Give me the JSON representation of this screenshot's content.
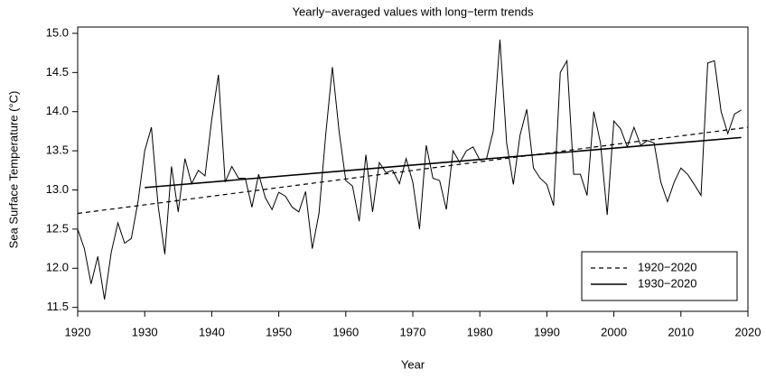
{
  "chart_data": {
    "type": "line",
    "title": "Yearly−averaged values with long−term trends",
    "xlabel": "Year",
    "ylabel": "Sea Surface Temperature (°C)",
    "xlim": [
      1920,
      2020
    ],
    "ylim": [
      11.45,
      15.08
    ],
    "xticks": [
      1920,
      1930,
      1940,
      1950,
      1960,
      1970,
      1980,
      1990,
      2000,
      2010,
      2020
    ],
    "yticks": [
      11.5,
      {
        "value": 12,
        "label": "12.0"
      },
      12.5,
      {
        "value": 13,
        "label": "13.0"
      },
      13.5,
      {
        "value": 14,
        "label": "14.0"
      },
      14.5,
      {
        "value": 15,
        "label": "15.0"
      }
    ],
    "legend": "bottom-right",
    "series": [
      {
        "color": "#000000",
        "dashed": false,
        "width": 1,
        "x": [
          1920,
          1921,
          1922,
          1923,
          1924,
          1925,
          1926,
          1927,
          1928,
          1929,
          1930,
          1931,
          1932,
          1933,
          1934,
          1935,
          1936,
          1937,
          1938,
          1939,
          1940,
          1941,
          1942,
          1943,
          1944,
          1945,
          1946,
          1947,
          1948,
          1949,
          1950,
          1951,
          1952,
          1953,
          1954,
          1955,
          1956,
          1957,
          1958,
          1959,
          1960,
          1961,
          1962,
          1963,
          1964,
          1965,
          1966,
          1967,
          1968,
          1969,
          1970,
          1971,
          1972,
          1973,
          1974,
          1975,
          1976,
          1977,
          1978,
          1979,
          1980,
          1981,
          1982,
          1983,
          1984,
          1985,
          1986,
          1987,
          1988,
          1989,
          1990,
          1991,
          1992,
          1993,
          1994,
          1995,
          1996,
          1997,
          1998,
          1999,
          2000,
          2001,
          2002,
          2003,
          2004,
          2005,
          2006,
          2007,
          2008,
          2009,
          2010,
          2011,
          2012,
          2013,
          2014,
          2015,
          2016,
          2017,
          2018,
          2019
        ],
        "values": [
          12.5,
          12.25,
          11.8,
          12.15,
          11.6,
          12.2,
          12.58,
          12.32,
          12.38,
          12.85,
          13.5,
          13.8,
          12.8,
          12.18,
          13.3,
          12.72,
          13.4,
          13.08,
          13.25,
          13.18,
          13.9,
          14.47,
          13.1,
          13.3,
          13.15,
          13.15,
          12.78,
          13.2,
          12.9,
          12.75,
          12.97,
          12.92,
          12.78,
          12.72,
          12.98,
          12.25,
          12.7,
          13.7,
          14.57,
          13.75,
          13.12,
          13.05,
          12.6,
          13.45,
          12.72,
          13.35,
          13.22,
          13.25,
          13.08,
          13.4,
          13.1,
          12.5,
          13.57,
          13.15,
          13.12,
          12.75,
          13.5,
          13.35,
          13.5,
          13.55,
          13.38,
          13.4,
          13.75,
          14.92,
          13.6,
          13.07,
          13.7,
          14.03,
          13.28,
          13.15,
          13.07,
          12.8,
          14.5,
          14.65,
          13.2,
          13.2,
          12.93,
          14.0,
          13.6,
          12.68,
          13.88,
          13.78,
          13.55,
          13.8,
          13.57,
          13.63,
          13.6,
          13.1,
          12.85,
          13.1,
          13.28,
          13.2,
          13.07,
          12.93,
          14.62,
          14.65,
          14.0,
          13.72,
          13.97,
          14.02
        ]
      },
      {
        "name": "1920−2020",
        "color": "#000000",
        "dashed": true,
        "width": 1.2,
        "x": [
          1920,
          2020
        ],
        "values": [
          12.7,
          13.8
        ]
      },
      {
        "name": "1930−2020",
        "color": "#000000",
        "dashed": false,
        "width": 1.6,
        "x": [
          1930,
          2019
        ],
        "values": [
          13.03,
          13.67
        ]
      }
    ]
  }
}
